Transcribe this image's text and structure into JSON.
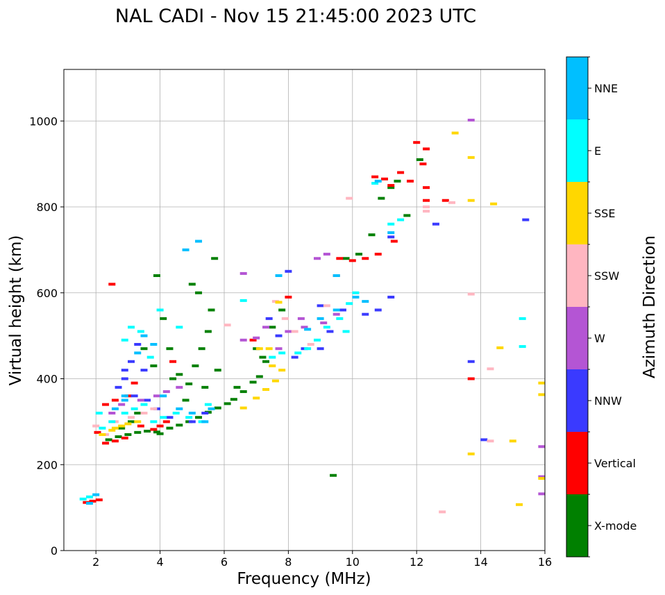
{
  "chart_data": {
    "type": "scatter",
    "title": "NAL CADI - Nov 15 21:45:00 2023 UTC",
    "xlabel": "Frequency (MHz)",
    "ylabel": "Virtual height (km)",
    "xlim": [
      1,
      16
    ],
    "ylim": [
      0,
      1120
    ],
    "xticks": [
      2,
      4,
      6,
      8,
      10,
      12,
      14,
      16
    ],
    "yticks": [
      0,
      200,
      400,
      600,
      800,
      1000
    ],
    "grid": true,
    "colorbar": {
      "label": "Azimuth Direction",
      "categories": [
        "X-mode",
        "Vertical",
        "NNW",
        "W",
        "SSW",
        "SSE",
        "E",
        "NNE"
      ],
      "colors": [
        "#008000",
        "#ff0000",
        "#3a3aff",
        "#b455d4",
        "#ffb6c1",
        "#ffd700",
        "#00ffff",
        "#00bfff"
      ]
    },
    "series": [
      {
        "name": "X-mode",
        "points": [
          [
            2.4,
            258
          ],
          [
            2.7,
            265
          ],
          [
            3.0,
            270
          ],
          [
            3.3,
            275
          ],
          [
            3.6,
            278
          ],
          [
            3.9,
            276
          ],
          [
            4.0,
            272
          ],
          [
            4.3,
            285
          ],
          [
            4.6,
            292
          ],
          [
            4.9,
            300
          ],
          [
            5.2,
            310
          ],
          [
            5.5,
            322
          ],
          [
            5.8,
            332
          ],
          [
            6.1,
            342
          ],
          [
            6.3,
            352
          ],
          [
            6.6,
            370
          ],
          [
            6.9,
            392
          ],
          [
            7.1,
            405
          ],
          [
            7.3,
            440
          ],
          [
            7.0,
            470
          ],
          [
            7.5,
            520
          ],
          [
            7.8,
            560
          ],
          [
            4.1,
            540
          ],
          [
            4.3,
            470
          ],
          [
            4.6,
            410
          ],
          [
            4.9,
            388
          ],
          [
            5.1,
            430
          ],
          [
            5.3,
            470
          ],
          [
            5.5,
            510
          ],
          [
            5.6,
            560
          ],
          [
            5.2,
            600
          ],
          [
            5.0,
            620
          ],
          [
            3.8,
            430
          ],
          [
            3.5,
            470
          ],
          [
            3.1,
            300
          ],
          [
            3.3,
            320
          ],
          [
            4.4,
            400
          ],
          [
            4.8,
            350
          ],
          [
            5.4,
            380
          ],
          [
            5.8,
            420
          ],
          [
            9.4,
            175
          ],
          [
            10.2,
            690
          ],
          [
            10.6,
            735
          ],
          [
            10.9,
            820
          ],
          [
            11.2,
            845
          ],
          [
            11.4,
            860
          ],
          [
            11.7,
            780
          ],
          [
            12.1,
            910
          ],
          [
            9.8,
            680
          ],
          [
            5.7,
            680
          ],
          [
            3.9,
            640
          ],
          [
            6.4,
            380
          ],
          [
            7.2,
            450
          ],
          [
            2.8,
            285
          ]
        ]
      },
      {
        "name": "Vertical",
        "points": [
          [
            1.7,
            112
          ],
          [
            1.9,
            115
          ],
          [
            2.1,
            118
          ],
          [
            2.05,
            275
          ],
          [
            2.3,
            250
          ],
          [
            2.6,
            255
          ],
          [
            2.9,
            262
          ],
          [
            2.3,
            340
          ],
          [
            2.6,
            350
          ],
          [
            3.0,
            360
          ],
          [
            3.4,
            290
          ],
          [
            3.8,
            282
          ],
          [
            4.0,
            290
          ],
          [
            4.2,
            300
          ],
          [
            2.5,
            620
          ],
          [
            10.0,
            675
          ],
          [
            10.4,
            680
          ],
          [
            10.8,
            690
          ],
          [
            11.3,
            720
          ],
          [
            11.0,
            865
          ],
          [
            11.5,
            880
          ],
          [
            11.8,
            860
          ],
          [
            12.3,
            845
          ],
          [
            12.2,
            900
          ],
          [
            12.3,
            935
          ],
          [
            12.3,
            815
          ],
          [
            12.9,
            815
          ],
          [
            12.0,
            950
          ],
          [
            13.7,
            400
          ],
          [
            9.6,
            680
          ],
          [
            3.2,
            390
          ],
          [
            4.4,
            440
          ],
          [
            6.9,
            490
          ],
          [
            8.0,
            590
          ],
          [
            9.5,
            640
          ],
          [
            11.2,
            850
          ],
          [
            10.7,
            870
          ]
        ]
      },
      {
        "name": "NNW",
        "points": [
          [
            2.9,
            420
          ],
          [
            3.1,
            440
          ],
          [
            3.3,
            480
          ],
          [
            3.5,
            420
          ],
          [
            2.7,
            380
          ],
          [
            2.9,
            400
          ],
          [
            3.2,
            360
          ],
          [
            3.6,
            350
          ],
          [
            3.9,
            330
          ],
          [
            4.3,
            310
          ],
          [
            5.0,
            300
          ],
          [
            5.4,
            320
          ],
          [
            8.2,
            450
          ],
          [
            8.5,
            470
          ],
          [
            9.0,
            470
          ],
          [
            9.3,
            510
          ],
          [
            9.0,
            570
          ],
          [
            9.7,
            560
          ],
          [
            10.4,
            550
          ],
          [
            10.8,
            560
          ],
          [
            11.2,
            590
          ],
          [
            11.2,
            730
          ],
          [
            12.6,
            760
          ],
          [
            15.4,
            770
          ],
          [
            13.7,
            440
          ],
          [
            14.1,
            258
          ],
          [
            8.0,
            650
          ],
          [
            7.4,
            540
          ],
          [
            7.7,
            500
          ]
        ]
      },
      {
        "name": "W",
        "points": [
          [
            2.5,
            320
          ],
          [
            2.8,
            340
          ],
          [
            3.4,
            350
          ],
          [
            3.9,
            360
          ],
          [
            4.2,
            370
          ],
          [
            4.6,
            380
          ],
          [
            6.6,
            490
          ],
          [
            7.0,
            495
          ],
          [
            7.3,
            520
          ],
          [
            8.0,
            510
          ],
          [
            8.5,
            520
          ],
          [
            9.1,
            530
          ],
          [
            9.5,
            550
          ],
          [
            8.9,
            680
          ],
          [
            9.2,
            690
          ],
          [
            15.9,
            172
          ],
          [
            15.9,
            242
          ],
          [
            15.9,
            132
          ],
          [
            13.7,
            1002
          ],
          [
            7.7,
            470
          ],
          [
            8.4,
            540
          ],
          [
            6.6,
            645
          ]
        ]
      },
      {
        "name": "SSW",
        "points": [
          [
            2.0,
            290
          ],
          [
            2.3,
            270
          ],
          [
            2.6,
            300
          ],
          [
            3.1,
            310
          ],
          [
            3.5,
            320
          ],
          [
            3.8,
            330
          ],
          [
            6.1,
            525
          ],
          [
            7.6,
            580
          ],
          [
            8.2,
            510
          ],
          [
            9.2,
            570
          ],
          [
            9.9,
            820
          ],
          [
            12.3,
            790
          ],
          [
            12.3,
            800
          ],
          [
            13.1,
            810
          ],
          [
            14.3,
            423
          ],
          [
            14.3,
            255
          ],
          [
            12.8,
            90
          ],
          [
            13.7,
            597
          ],
          [
            8.7,
            480
          ],
          [
            7.9,
            540
          ]
        ]
      },
      {
        "name": "SSE",
        "points": [
          [
            2.2,
            270
          ],
          [
            2.5,
            280
          ],
          [
            2.8,
            290
          ],
          [
            3.0,
            295
          ],
          [
            3.3,
            300
          ],
          [
            2.6,
            285
          ],
          [
            6.6,
            332
          ],
          [
            7.0,
            355
          ],
          [
            7.3,
            375
          ],
          [
            7.6,
            395
          ],
          [
            7.8,
            420
          ],
          [
            7.4,
            470
          ],
          [
            7.7,
            578
          ],
          [
            13.2,
            972
          ],
          [
            13.7,
            915
          ],
          [
            13.7,
            815
          ],
          [
            14.4,
            807
          ],
          [
            14.6,
            472
          ],
          [
            15.0,
            255
          ],
          [
            15.2,
            107
          ],
          [
            15.9,
            390
          ],
          [
            15.9,
            363
          ],
          [
            15.9,
            168
          ],
          [
            13.7,
            225
          ],
          [
            7.1,
            470
          ],
          [
            7.5,
            430
          ]
        ]
      },
      {
        "name": "E",
        "points": [
          [
            1.6,
            120
          ],
          [
            1.8,
            125
          ],
          [
            2.2,
            285
          ],
          [
            2.5,
            300
          ],
          [
            2.9,
            320
          ],
          [
            3.2,
            330
          ],
          [
            3.5,
            340
          ],
          [
            3.8,
            300
          ],
          [
            4.1,
            310
          ],
          [
            4.5,
            320
          ],
          [
            4.9,
            310
          ],
          [
            5.3,
            300
          ],
          [
            5.5,
            340
          ],
          [
            2.9,
            490
          ],
          [
            3.1,
            520
          ],
          [
            3.4,
            510
          ],
          [
            4.0,
            560
          ],
          [
            7.5,
            450
          ],
          [
            7.8,
            460
          ],
          [
            8.3,
            460
          ],
          [
            8.9,
            490
          ],
          [
            9.2,
            520
          ],
          [
            9.6,
            540
          ],
          [
            9.9,
            575
          ],
          [
            10.1,
            600
          ],
          [
            8.6,
            470
          ],
          [
            9.8,
            510
          ],
          [
            10.7,
            855
          ],
          [
            11.2,
            760
          ],
          [
            15.3,
            540
          ],
          [
            15.3,
            475
          ],
          [
            4.6,
            520
          ],
          [
            6.6,
            582
          ],
          [
            11.5,
            770
          ],
          [
            2.1,
            320
          ],
          [
            3.7,
            450
          ]
        ]
      },
      {
        "name": "NNE",
        "points": [
          [
            1.8,
            110
          ],
          [
            2.0,
            130
          ],
          [
            2.6,
            330
          ],
          [
            2.9,
            350
          ],
          [
            3.3,
            460
          ],
          [
            3.5,
            500
          ],
          [
            3.8,
            480
          ],
          [
            4.1,
            360
          ],
          [
            4.6,
            330
          ],
          [
            5.0,
            320
          ],
          [
            5.4,
            300
          ],
          [
            5.6,
            330
          ],
          [
            8.6,
            515
          ],
          [
            9.0,
            540
          ],
          [
            9.5,
            560
          ],
          [
            10.1,
            590
          ],
          [
            10.4,
            580
          ],
          [
            10.8,
            860
          ],
          [
            11.2,
            740
          ],
          [
            9.5,
            640
          ],
          [
            7.7,
            640
          ],
          [
            2.9,
            360
          ],
          [
            4.8,
            700
          ],
          [
            5.2,
            720
          ]
        ]
      }
    ]
  }
}
